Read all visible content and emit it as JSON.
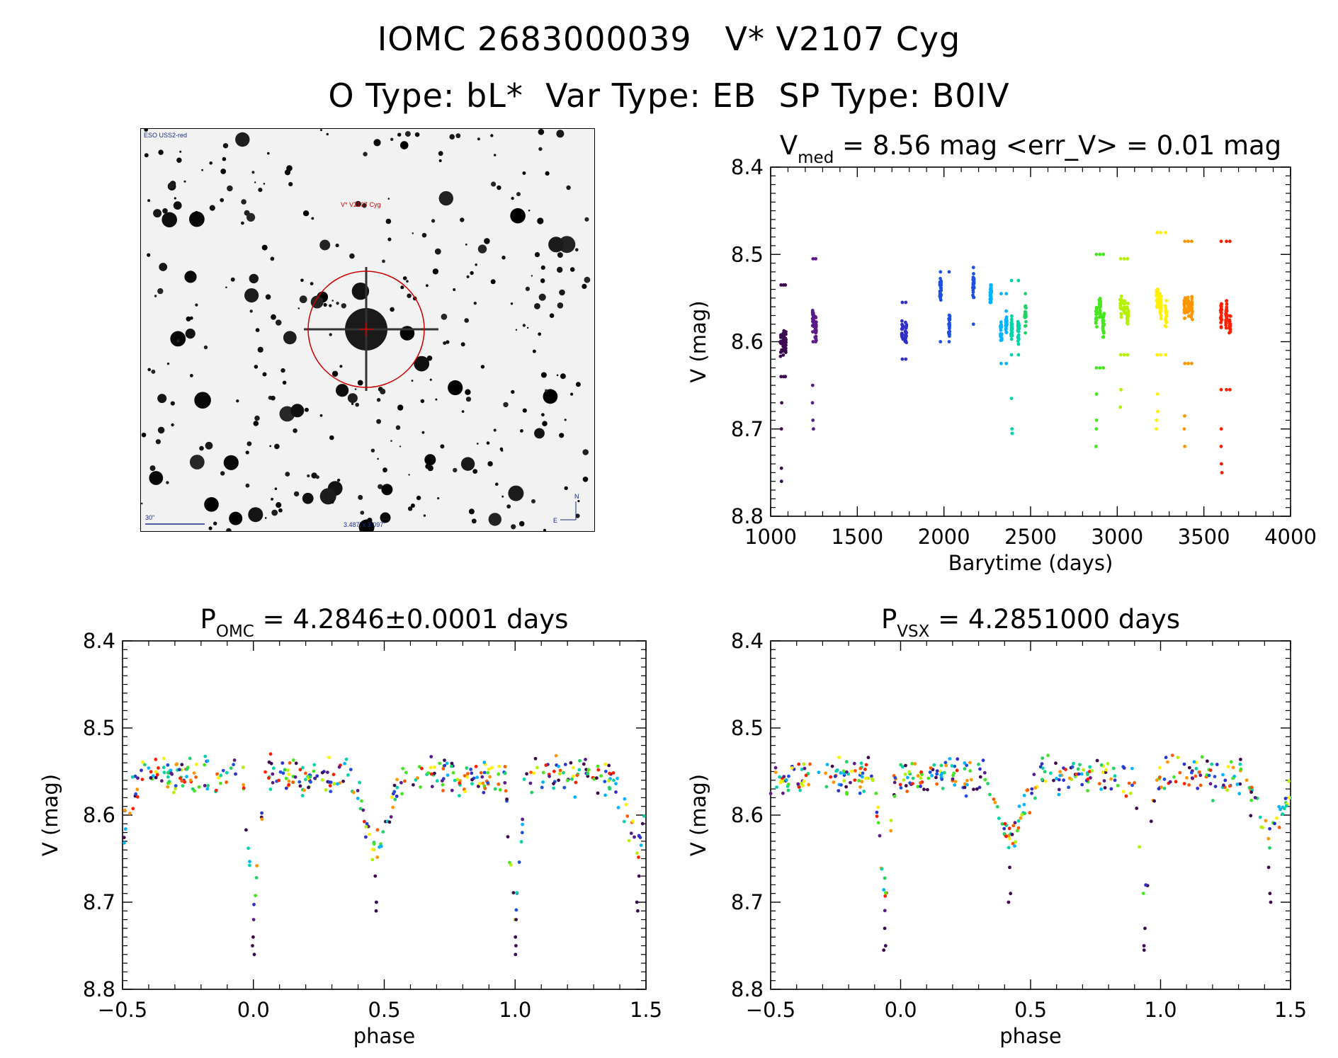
{
  "header": {
    "line1": "IOMC 2683000039   V* V2107 Cyg",
    "line2": "O Type: bL*  Var Type: EB  SP Type: B0IV"
  },
  "finder_chart": {
    "survey_label": "ESO USS2-red",
    "target_label": "V* V2107 Cyg",
    "scale_label": "30\"",
    "size_label": "3.487' x 3.097'",
    "north_label": "N",
    "east_label": "E"
  },
  "colors": {
    "epoch_palette": [
      "#3d0a52",
      "#5a1a8a",
      "#3030c8",
      "#1e50e0",
      "#00b4ff",
      "#00d2aa",
      "#1ed264",
      "#46e61e",
      "#b4f000",
      "#ffef00",
      "#ff9600",
      "#ff5a00",
      "#ff1e00"
    ],
    "finder_circle": "#cc0000"
  },
  "chart_data": [
    {
      "id": "lightcurve",
      "type": "scatter",
      "title_main": "V",
      "title_sub": "med",
      "title_rest": " = 8.56 mag <err_V> = 0.01 mag",
      "xlabel": "Barytime (days)",
      "ylabel": "V (mag)",
      "xlim": [
        1000,
        4000
      ],
      "ylim": [
        8.8,
        8.4
      ],
      "xticks": [
        "1000",
        "1500",
        "2000",
        "2500",
        "3000",
        "3500",
        "4000"
      ],
      "yticks": [
        "8.4",
        "8.5",
        "8.6",
        "8.7",
        "8.8"
      ],
      "series": [
        {
          "x": [
            1060,
            1075,
            1085
          ],
          "values": [
            8.6,
            8.6,
            8.6
          ],
          "spread": [
            8.535,
            8.64
          ],
          "outliers": [
            8.67,
            8.7,
            8.745,
            8.76
          ],
          "color_index": 0
        },
        {
          "x": [
            1245,
            1260
          ],
          "values": [
            8.575,
            8.585
          ],
          "spread": [
            8.505,
            8.6
          ],
          "outliers": [
            8.65,
            8.67,
            8.69,
            8.7
          ],
          "color_index": 1
        },
        {
          "x": [
            1760,
            1780
          ],
          "values": [
            8.585,
            8.59
          ],
          "spread": [
            8.555,
            8.62
          ],
          "outliers": [],
          "color_index": 2
        },
        {
          "x": [
            1980,
            2030
          ],
          "values": [
            8.54,
            8.58
          ],
          "spread": [
            8.52,
            8.6
          ],
          "outliers": [],
          "color_index": 3
        },
        {
          "x": [
            2170
          ],
          "values": [
            8.535
          ],
          "spread": [
            8.515,
            8.58
          ],
          "outliers": [],
          "color_index": 3
        },
        {
          "x": [
            2270
          ],
          "values": [
            8.545
          ],
          "spread": [
            8.535,
            8.555
          ],
          "outliers": [],
          "color_index": 4
        },
        {
          "x": [
            2330,
            2360
          ],
          "values": [
            8.585,
            8.58
          ],
          "spread": [
            8.545,
            8.625
          ],
          "outliers": [],
          "color_index": 4
        },
        {
          "x": [
            2390,
            2430
          ],
          "values": [
            8.585,
            8.59
          ],
          "spread": [
            8.53,
            8.615
          ],
          "outliers": [
            8.665,
            8.7,
            8.705
          ],
          "color_index": 5
        },
        {
          "x": [
            2470
          ],
          "values": [
            8.57
          ],
          "spread": [
            8.545,
            8.59
          ],
          "outliers": [],
          "color_index": 6
        },
        {
          "x": [
            2880,
            2900,
            2920
          ],
          "values": [
            8.57,
            8.56,
            8.58
          ],
          "spread": [
            8.5,
            8.63
          ],
          "outliers": [
            8.66,
            8.69,
            8.7,
            8.72
          ],
          "color_index": 7
        },
        {
          "x": [
            3020,
            3040,
            3060
          ],
          "values": [
            8.56,
            8.56,
            8.57
          ],
          "spread": [
            8.505,
            8.615
          ],
          "outliers": [
            8.655,
            8.675
          ],
          "color_index": 8
        },
        {
          "x": [
            3230,
            3250,
            3280
          ],
          "values": [
            8.55,
            8.56,
            8.57
          ],
          "spread": [
            8.475,
            8.615
          ],
          "outliers": [
            8.66,
            8.68,
            8.69,
            8.7
          ],
          "color_index": 9
        },
        {
          "x": [
            3390,
            3410,
            3430
          ],
          "values": [
            8.56,
            8.56,
            8.56
          ],
          "spread": [
            8.485,
            8.625
          ],
          "outliers": [
            8.685,
            8.7,
            8.72
          ],
          "color_index": 10
        },
        {
          "x": [
            3600,
            3630,
            3650
          ],
          "values": [
            8.57,
            8.57,
            8.58
          ],
          "spread": [
            8.485,
            8.655
          ],
          "outliers": [
            8.7,
            8.72,
            8.74,
            8.75
          ],
          "color_index": 12
        }
      ]
    },
    {
      "id": "phase_omc",
      "type": "scatter",
      "title_main": "P",
      "title_sub": "OMC",
      "title_rest": " = 4.2846±0.0001 days",
      "xlabel": "phase",
      "ylabel": "V (mag)",
      "xlim": [
        -0.5,
        1.5
      ],
      "ylim": [
        8.8,
        8.4
      ],
      "xticks": [
        "−0.5",
        "0.0",
        "0.5",
        "1.0",
        "1.5"
      ],
      "yticks": [
        "8.4",
        "8.5",
        "8.6",
        "8.7",
        "8.8"
      ],
      "eclipses": [
        {
          "center": 0.0,
          "depth": 8.72,
          "width": 0.04,
          "deep_points": [
            8.74,
            8.75,
            8.76
          ]
        },
        {
          "center": 0.47,
          "depth": 8.64,
          "width": 0.1,
          "deep_points": [
            8.67,
            8.7,
            8.71
          ]
        }
      ],
      "period_repeat": 1.0
    },
    {
      "id": "phase_vsx",
      "type": "scatter",
      "title_main": "P",
      "title_sub": "VSX",
      "title_rest": " = 4.2851000 days",
      "xlabel": "phase",
      "ylabel": "V (mag)",
      "xlim": [
        -0.5,
        1.5
      ],
      "ylim": [
        8.8,
        8.4
      ],
      "xticks": [
        "−0.5",
        "0.0",
        "0.5",
        "1.0",
        "1.5"
      ],
      "yticks": [
        "8.4",
        "8.5",
        "8.6",
        "8.7",
        "8.8"
      ],
      "eclipses": [
        {
          "center": -0.06,
          "depth": 8.7,
          "width": 0.04,
          "deep_points": [
            8.73,
            8.75,
            8.755
          ]
        },
        {
          "center": 0.42,
          "depth": 8.63,
          "width": 0.1,
          "deep_points": [
            8.66,
            8.69,
            8.7
          ]
        }
      ],
      "period_repeat": 1.0
    }
  ]
}
